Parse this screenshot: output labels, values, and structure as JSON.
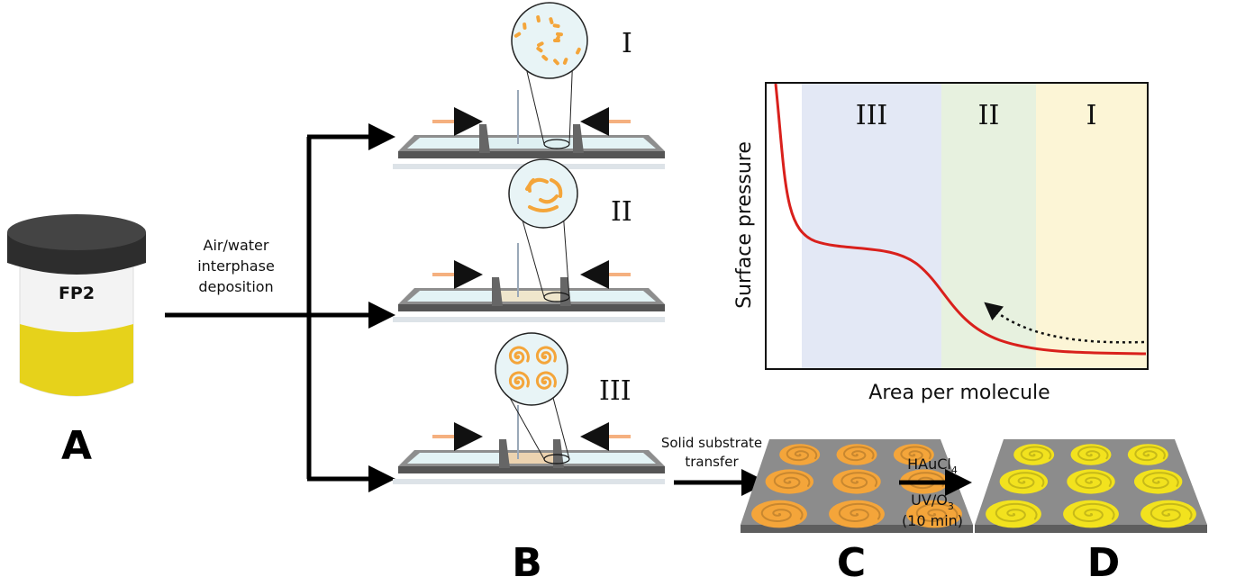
{
  "panels": {
    "a": "A",
    "b": "B",
    "c": "C",
    "d": "D"
  },
  "jar": {
    "label": "FP2",
    "colors": {
      "lid": "#2b2b2b",
      "body": "#f4f4f4",
      "band": "#e8d21a"
    }
  },
  "deposition": {
    "lines": [
      "Air/water",
      "interphase",
      "deposition"
    ]
  },
  "stages": [
    {
      "roman": "I",
      "morphology": "short rods"
    },
    {
      "roman": "II",
      "morphology": "curved fibers"
    },
    {
      "roman": "III",
      "morphology": "spirals"
    }
  ],
  "transfer": {
    "lines": [
      "Solid substrate",
      "transfer"
    ]
  },
  "treatment": {
    "reagent": "HAuCl",
    "reagent_sub": "4",
    "uv": "UV/O",
    "uv_sub": "3",
    "time": "(10 min)"
  },
  "isotherm": {
    "ylabel": "Surface pressure",
    "xlabel": "Area per molecule",
    "regions": [
      {
        "label": "III",
        "color": "#e3e8f5"
      },
      {
        "label": "II",
        "color": "#e7f1df"
      },
      {
        "label": "I",
        "color": "#fcf5d6"
      }
    ],
    "curve_color": "#d9201c"
  },
  "colors": {
    "orange": "#f4a53a",
    "gold": "#f2e21e",
    "arrow": "#f5b07f",
    "substrate": "#8a8a8a"
  }
}
